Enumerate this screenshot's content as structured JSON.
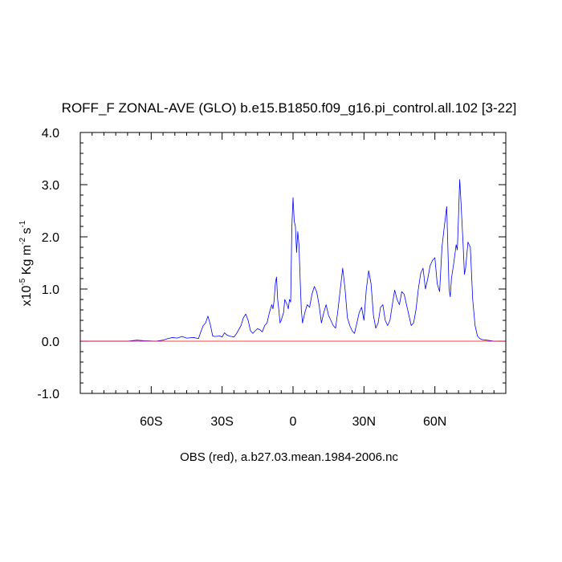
{
  "chart_data": {
    "type": "line",
    "title": "ROFF_F ZONAL-AVE (GLO) b.e15.B1850.f09_g16.pi_control.all.102 [3-22]",
    "ylabel": {
      "prefix": "x10",
      "exp1": "-5",
      "mid": " Kg m",
      "exp2": "-2",
      "mid2": " s",
      "exp3": "-1"
    },
    "xlabel": "OBS (red), a.b27.03.mean.1984-2006.nc",
    "xlim": [
      -90,
      90
    ],
    "ylim": [
      -1.0,
      4.0
    ],
    "xticks": [
      {
        "value": -60,
        "label": "60S"
      },
      {
        "value": -30,
        "label": "30S"
      },
      {
        "value": 0,
        "label": "0"
      },
      {
        "value": 30,
        "label": "30N"
      },
      {
        "value": 60,
        "label": "60N"
      }
    ],
    "yticks": [
      {
        "value": -1.0,
        "label": "-1.0"
      },
      {
        "value": 0.0,
        "label": "0.0"
      },
      {
        "value": 1.0,
        "label": "1.0"
      },
      {
        "value": 2.0,
        "label": "2.0"
      },
      {
        "value": 3.0,
        "label": "3.0"
      },
      {
        "value": 4.0,
        "label": "4.0"
      }
    ],
    "series": [
      {
        "color": "#0000ff",
        "points": [
          [
            -90,
            0
          ],
          [
            -80,
            0
          ],
          [
            -70,
            0
          ],
          [
            -66,
            0.02
          ],
          [
            -63,
            0.01
          ],
          [
            -58,
            0
          ],
          [
            -55,
            0.02
          ],
          [
            -53,
            0.05
          ],
          [
            -51,
            0.07
          ],
          [
            -49,
            0.06
          ],
          [
            -47,
            0.09
          ],
          [
            -45,
            0.06
          ],
          [
            -42,
            0.07
          ],
          [
            -40,
            0.05
          ],
          [
            -39,
            0.18
          ],
          [
            -38,
            0.3
          ],
          [
            -37,
            0.35
          ],
          [
            -36,
            0.48
          ],
          [
            -35,
            0.32
          ],
          [
            -34,
            0.1
          ],
          [
            -33,
            0.09
          ],
          [
            -31,
            0.1
          ],
          [
            -30,
            0.08
          ],
          [
            -29,
            0.16
          ],
          [
            -28,
            0.12
          ],
          [
            -27,
            0.1
          ],
          [
            -26,
            0.09
          ],
          [
            -25,
            0.08
          ],
          [
            -24,
            0.14
          ],
          [
            -22,
            0.3
          ],
          [
            -21,
            0.45
          ],
          [
            -20,
            0.52
          ],
          [
            -19,
            0.4
          ],
          [
            -18,
            0.2
          ],
          [
            -17,
            0.15
          ],
          [
            -16,
            0.2
          ],
          [
            -15,
            0.24
          ],
          [
            -14,
            0.22
          ],
          [
            -13,
            0.18
          ],
          [
            -12,
            0.3
          ],
          [
            -11,
            0.35
          ],
          [
            -10,
            0.55
          ],
          [
            -9,
            0.7
          ],
          [
            -8.5,
            0.62
          ],
          [
            -8,
            0.78
          ],
          [
            -7.5,
            1.1
          ],
          [
            -7,
            1.23
          ],
          [
            -6.5,
            0.8
          ],
          [
            -6,
            0.6
          ],
          [
            -5.5,
            0.35
          ],
          [
            -5,
            0.4
          ],
          [
            -4,
            0.55
          ],
          [
            -3.5,
            0.8
          ],
          [
            -3,
            0.75
          ],
          [
            -2.5,
            0.7
          ],
          [
            -2,
            0.62
          ],
          [
            -1.5,
            0.8
          ],
          [
            -1,
            0.75
          ],
          [
            -0.5,
            2.2
          ],
          [
            0,
            2.75
          ],
          [
            0.5,
            2.3
          ],
          [
            1,
            2.2
          ],
          [
            1.5,
            1.7
          ],
          [
            2,
            2.1
          ],
          [
            2.5,
            1.85
          ],
          [
            3,
            1.2
          ],
          [
            3.5,
            0.6
          ],
          [
            4,
            0.35
          ],
          [
            5,
            0.55
          ],
          [
            6,
            0.7
          ],
          [
            7,
            0.65
          ],
          [
            8,
            0.9
          ],
          [
            9,
            1.05
          ],
          [
            10,
            0.95
          ],
          [
            11,
            0.7
          ],
          [
            12,
            0.35
          ],
          [
            13,
            0.55
          ],
          [
            14,
            0.7
          ],
          [
            15,
            0.5
          ],
          [
            16,
            0.4
          ],
          [
            17,
            0.3
          ],
          [
            18,
            0.25
          ],
          [
            19,
            0.6
          ],
          [
            20,
            1.0
          ],
          [
            21,
            1.4
          ],
          [
            22,
            1.0
          ],
          [
            23,
            0.45
          ],
          [
            24,
            0.3
          ],
          [
            25,
            0.2
          ],
          [
            26,
            0.15
          ],
          [
            27,
            0.35
          ],
          [
            28,
            0.55
          ],
          [
            29,
            0.65
          ],
          [
            30,
            0.4
          ],
          [
            31,
            1.0
          ],
          [
            32,
            1.35
          ],
          [
            33,
            1.1
          ],
          [
            34,
            0.5
          ],
          [
            35,
            0.25
          ],
          [
            36,
            0.35
          ],
          [
            37,
            0.65
          ],
          [
            38,
            0.7
          ],
          [
            39,
            0.4
          ],
          [
            40,
            0.3
          ],
          [
            41,
            0.4
          ],
          [
            42,
            0.7
          ],
          [
            43,
            0.98
          ],
          [
            44,
            0.8
          ],
          [
            45,
            0.7
          ],
          [
            46,
            0.95
          ],
          [
            47,
            0.9
          ],
          [
            48,
            0.7
          ],
          [
            49,
            0.5
          ],
          [
            50,
            0.3
          ],
          [
            51,
            0.35
          ],
          [
            52,
            0.6
          ],
          [
            53,
            1.0
          ],
          [
            54,
            1.3
          ],
          [
            55,
            1.4
          ],
          [
            56,
            1.0
          ],
          [
            57,
            1.2
          ],
          [
            58,
            1.45
          ],
          [
            59,
            1.55
          ],
          [
            60,
            1.6
          ],
          [
            61,
            1.1
          ],
          [
            62,
            0.95
          ],
          [
            63,
            1.8
          ],
          [
            64,
            2.2
          ],
          [
            65,
            2.58
          ],
          [
            66,
            1.0
          ],
          [
            66.5,
            0.85
          ],
          [
            67,
            1.2
          ],
          [
            68,
            1.5
          ],
          [
            69,
            1.85
          ],
          [
            69.5,
            1.75
          ],
          [
            70,
            2.4
          ],
          [
            70.5,
            3.1
          ],
          [
            71,
            2.7
          ],
          [
            72,
            1.8
          ],
          [
            72.5,
            1.28
          ],
          [
            73,
            1.4
          ],
          [
            74,
            1.9
          ],
          [
            75,
            1.8
          ],
          [
            76,
            0.8
          ],
          [
            77,
            0.3
          ],
          [
            78,
            0.1
          ],
          [
            79,
            0.05
          ],
          [
            80,
            0.03
          ],
          [
            82,
            0.02
          ],
          [
            85,
            0
          ],
          [
            90,
            0
          ]
        ]
      },
      {
        "color": "#ff0000",
        "points": [
          [
            -90,
            0
          ],
          [
            90,
            0
          ]
        ]
      }
    ]
  }
}
